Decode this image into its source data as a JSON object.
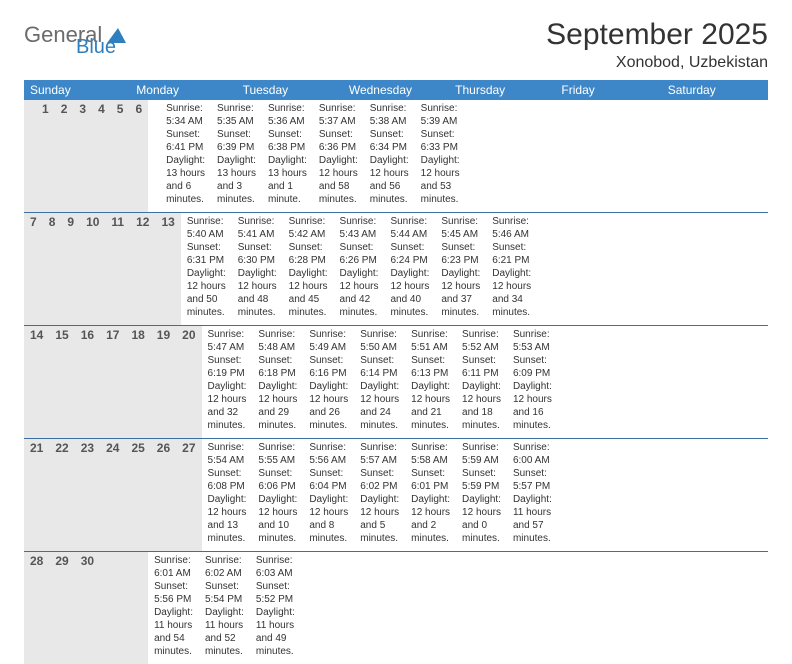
{
  "logo": {
    "word1": "General",
    "word2": "Blue"
  },
  "title": "September 2025",
  "location": "Xonobod, Uzbekistan",
  "colors": {
    "header_bg": "#3d87c9",
    "header_text": "#ffffff",
    "daynum_bg": "#e8e8e8",
    "rule": "#3d6fa0",
    "logo_gray": "#6b6b6b",
    "logo_blue": "#2f7fbf"
  },
  "dow": [
    "Sunday",
    "Monday",
    "Tuesday",
    "Wednesday",
    "Thursday",
    "Friday",
    "Saturday"
  ],
  "weeks": [
    [
      null,
      {
        "n": "1",
        "sr": "5:34 AM",
        "ss": "6:41 PM",
        "dl": "13 hours and 6 minutes."
      },
      {
        "n": "2",
        "sr": "5:35 AM",
        "ss": "6:39 PM",
        "dl": "13 hours and 3 minutes."
      },
      {
        "n": "3",
        "sr": "5:36 AM",
        "ss": "6:38 PM",
        "dl": "13 hours and 1 minute."
      },
      {
        "n": "4",
        "sr": "5:37 AM",
        "ss": "6:36 PM",
        "dl": "12 hours and 58 minutes."
      },
      {
        "n": "5",
        "sr": "5:38 AM",
        "ss": "6:34 PM",
        "dl": "12 hours and 56 minutes."
      },
      {
        "n": "6",
        "sr": "5:39 AM",
        "ss": "6:33 PM",
        "dl": "12 hours and 53 minutes."
      }
    ],
    [
      {
        "n": "7",
        "sr": "5:40 AM",
        "ss": "6:31 PM",
        "dl": "12 hours and 50 minutes."
      },
      {
        "n": "8",
        "sr": "5:41 AM",
        "ss": "6:30 PM",
        "dl": "12 hours and 48 minutes."
      },
      {
        "n": "9",
        "sr": "5:42 AM",
        "ss": "6:28 PM",
        "dl": "12 hours and 45 minutes."
      },
      {
        "n": "10",
        "sr": "5:43 AM",
        "ss": "6:26 PM",
        "dl": "12 hours and 42 minutes."
      },
      {
        "n": "11",
        "sr": "5:44 AM",
        "ss": "6:24 PM",
        "dl": "12 hours and 40 minutes."
      },
      {
        "n": "12",
        "sr": "5:45 AM",
        "ss": "6:23 PM",
        "dl": "12 hours and 37 minutes."
      },
      {
        "n": "13",
        "sr": "5:46 AM",
        "ss": "6:21 PM",
        "dl": "12 hours and 34 minutes."
      }
    ],
    [
      {
        "n": "14",
        "sr": "5:47 AM",
        "ss": "6:19 PM",
        "dl": "12 hours and 32 minutes."
      },
      {
        "n": "15",
        "sr": "5:48 AM",
        "ss": "6:18 PM",
        "dl": "12 hours and 29 minutes."
      },
      {
        "n": "16",
        "sr": "5:49 AM",
        "ss": "6:16 PM",
        "dl": "12 hours and 26 minutes."
      },
      {
        "n": "17",
        "sr": "5:50 AM",
        "ss": "6:14 PM",
        "dl": "12 hours and 24 minutes."
      },
      {
        "n": "18",
        "sr": "5:51 AM",
        "ss": "6:13 PM",
        "dl": "12 hours and 21 minutes."
      },
      {
        "n": "19",
        "sr": "5:52 AM",
        "ss": "6:11 PM",
        "dl": "12 hours and 18 minutes."
      },
      {
        "n": "20",
        "sr": "5:53 AM",
        "ss": "6:09 PM",
        "dl": "12 hours and 16 minutes."
      }
    ],
    [
      {
        "n": "21",
        "sr": "5:54 AM",
        "ss": "6:08 PM",
        "dl": "12 hours and 13 minutes."
      },
      {
        "n": "22",
        "sr": "5:55 AM",
        "ss": "6:06 PM",
        "dl": "12 hours and 10 minutes."
      },
      {
        "n": "23",
        "sr": "5:56 AM",
        "ss": "6:04 PM",
        "dl": "12 hours and 8 minutes."
      },
      {
        "n": "24",
        "sr": "5:57 AM",
        "ss": "6:02 PM",
        "dl": "12 hours and 5 minutes."
      },
      {
        "n": "25",
        "sr": "5:58 AM",
        "ss": "6:01 PM",
        "dl": "12 hours and 2 minutes."
      },
      {
        "n": "26",
        "sr": "5:59 AM",
        "ss": "5:59 PM",
        "dl": "12 hours and 0 minutes."
      },
      {
        "n": "27",
        "sr": "6:00 AM",
        "ss": "5:57 PM",
        "dl": "11 hours and 57 minutes."
      }
    ],
    [
      {
        "n": "28",
        "sr": "6:01 AM",
        "ss": "5:56 PM",
        "dl": "11 hours and 54 minutes."
      },
      {
        "n": "29",
        "sr": "6:02 AM",
        "ss": "5:54 PM",
        "dl": "11 hours and 52 minutes."
      },
      {
        "n": "30",
        "sr": "6:03 AM",
        "ss": "5:52 PM",
        "dl": "11 hours and 49 minutes."
      },
      null,
      null,
      null,
      null
    ]
  ],
  "labels": {
    "sunrise": "Sunrise:",
    "sunset": "Sunset:",
    "daylight": "Daylight:"
  }
}
